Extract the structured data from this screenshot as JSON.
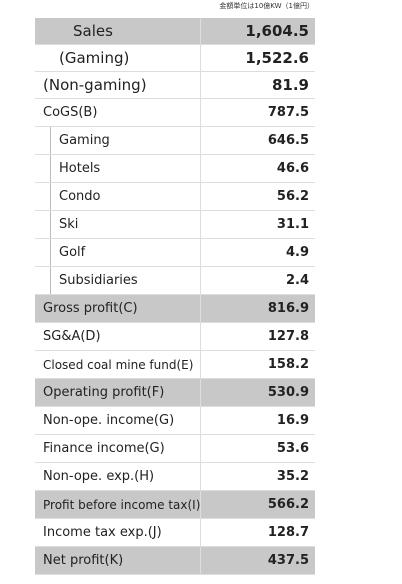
{
  "note": "金額単位は10億KW（1億円）",
  "rows": [
    [
      "Sales",
      "1,604.5"
    ],
    [
      "(Gaming)",
      "1,522.6"
    ],
    [
      "(Non-gaming)",
      "81.9"
    ],
    [
      "CoGS(B)",
      "787.5"
    ],
    [
      "Gaming",
      "646.5"
    ],
    [
      "Hotels",
      "46.6"
    ],
    [
      "Condo",
      "56.2"
    ],
    [
      "Ski",
      "31.1"
    ],
    [
      "Golf",
      "4.9"
    ],
    [
      "Subsidiaries",
      "2.4"
    ],
    [
      "Gross profit(C)",
      "816.9"
    ],
    [
      "SG&A(D)",
      "127.8"
    ],
    [
      "Closed coal mine fund(E)",
      "158.2"
    ],
    [
      "Operating profit(F)",
      "530.9"
    ],
    [
      "Non-ope. income(G)",
      "16.9"
    ],
    [
      "Finance income(G)",
      "53.6"
    ],
    [
      "Non-ope. exp.(H)",
      "35.2"
    ],
    [
      "Profit before income tax(I)",
      "566.2"
    ],
    [
      "Income tax exp.(J)",
      "128.7"
    ],
    [
      "Net profit(K)",
      "437.5"
    ]
  ]
}
